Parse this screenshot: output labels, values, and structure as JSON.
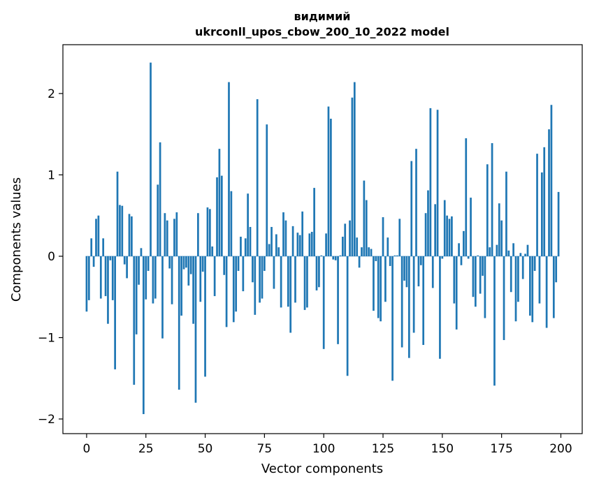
{
  "chart_data": {
    "type": "bar",
    "title": [
      "видимий",
      "ukrconll_upos_cbow_200_10_2022 model"
    ],
    "xlabel": "Vector components",
    "ylabel": "Components values",
    "xlim": [
      -10,
      209
    ],
    "ylim": [
      -2.18,
      2.6
    ],
    "xticks": [
      0,
      25,
      50,
      75,
      100,
      125,
      150,
      175,
      200
    ],
    "xtick_labels": [
      "0",
      "25",
      "50",
      "75",
      "100",
      "125",
      "150",
      "175",
      "200"
    ],
    "yticks": [
      -2,
      -1,
      0,
      1,
      2
    ],
    "ytick_labels": [
      "−2",
      "−1",
      "0",
      "1",
      "2"
    ],
    "grid": false,
    "bar_color": "#1f77b4",
    "values": [
      -0.68,
      -0.54,
      0.22,
      -0.13,
      0.46,
      0.5,
      -0.52,
      0.22,
      -0.49,
      -0.83,
      -0.05,
      -0.54,
      -1.39,
      1.04,
      0.63,
      0.62,
      -0.1,
      -0.27,
      0.52,
      0.49,
      -1.58,
      -0.96,
      -0.35,
      0.1,
      -1.94,
      -0.53,
      -0.18,
      2.38,
      -0.58,
      -0.52,
      0.88,
      1.4,
      -1.01,
      0.53,
      0.44,
      -0.15,
      -0.59,
      0.46,
      0.54,
      -1.64,
      -0.73,
      -0.16,
      -0.14,
      -0.36,
      -0.22,
      -0.83,
      -1.8,
      0.53,
      -0.56,
      -0.19,
      -1.48,
      0.6,
      0.58,
      0.12,
      -0.49,
      0.97,
      1.32,
      0.99,
      -0.23,
      -0.87,
      2.14,
      0.8,
      -0.81,
      -0.68,
      -0.18,
      0.24,
      -0.43,
      0.22,
      0.77,
      0.36,
      -0.32,
      -0.72,
      1.93,
      -0.57,
      -0.52,
      -0.18,
      1.62,
      0.15,
      0.36,
      -0.4,
      0.27,
      0.11,
      -0.63,
      0.54,
      0.44,
      -0.62,
      -0.94,
      0.37,
      -0.57,
      0.29,
      0.26,
      0.55,
      -0.66,
      -0.63,
      0.28,
      0.3,
      0.84,
      -0.42,
      -0.38,
      0.01,
      -1.14,
      0.28,
      1.84,
      1.69,
      -0.04,
      -0.05,
      -1.08,
      0.01,
      0.24,
      0.4,
      -1.47,
      0.44,
      1.95,
      2.14,
      0.23,
      -0.14,
      0.11,
      0.93,
      0.69,
      0.11,
      0.09,
      -0.67,
      -0.06,
      -0.76,
      -0.8,
      0.48,
      -0.56,
      0.23,
      -0.12,
      -1.53,
      0.01,
      0.01,
      0.46,
      -1.12,
      -0.3,
      -0.38,
      -1.25,
      1.17,
      -0.94,
      1.32,
      -0.37,
      -0.11,
      -1.09,
      0.53,
      0.81,
      1.82,
      -0.39,
      0.64,
      1.8,
      -1.26,
      -0.03,
      0.69,
      0.5,
      0.46,
      0.49,
      -0.58,
      -0.9,
      0.16,
      -0.11,
      0.31,
      1.45,
      -0.03,
      0.72,
      -0.5,
      -0.62,
      0.01,
      -0.46,
      -0.24,
      -0.76,
      1.13,
      0.11,
      1.39,
      -1.59,
      0.14,
      0.65,
      0.44,
      -1.03,
      1.04,
      0.07,
      -0.44,
      0.16,
      -0.8,
      -0.56,
      0.04,
      -0.28,
      0.03,
      0.14,
      -0.73,
      -0.81,
      -0.18,
      1.26,
      -0.58,
      1.03,
      1.34,
      -0.88,
      1.56,
      1.86,
      -0.76,
      -0.32,
      0.79
    ]
  }
}
